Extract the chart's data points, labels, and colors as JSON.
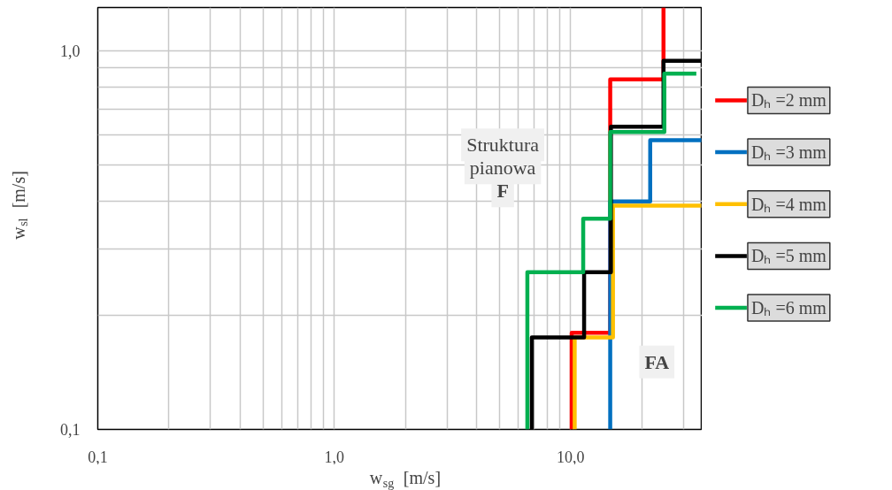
{
  "chart_data": {
    "type": "line",
    "xlabel": "w$_{sg}$ [m/s]",
    "ylabel": "w$_{sl}$ [m/s]",
    "annotations": [
      "Struktura\npianowa\nF",
      "FA"
    ],
    "log": "xy",
    "grid": true,
    "legend": "right",
    "line_style": "solid",
    "marker": "none",
    "xlim": [
      0.1,
      36
    ],
    "ylim": [
      0.1,
      1.3
    ],
    "xticks": [
      {
        "value": 0.1,
        "label": "0,1"
      },
      {
        "value": 0.2,
        "label": null
      },
      {
        "value": 0.3,
        "label": null
      },
      {
        "value": 0.4,
        "label": null
      },
      {
        "value": 0.5,
        "label": null
      },
      {
        "value": 0.6,
        "label": null
      },
      {
        "value": 0.7,
        "label": null
      },
      {
        "value": 0.8,
        "label": null
      },
      {
        "value": 0.9,
        "label": null
      },
      {
        "value": 1,
        "label": "1,0"
      },
      {
        "value": 2,
        "label": null
      },
      {
        "value": 3,
        "label": null
      },
      {
        "value": 4,
        "label": null
      },
      {
        "value": 5,
        "label": null
      },
      {
        "value": 6,
        "label": null
      },
      {
        "value": 7,
        "label": null
      },
      {
        "value": 8,
        "label": null
      },
      {
        "value": 9,
        "label": null
      },
      {
        "value": 10,
        "label": "10,0"
      },
      {
        "value": 20,
        "label": null
      },
      {
        "value": 30,
        "label": null
      }
    ],
    "yticks": [
      {
        "value": 0.1,
        "label": "0,1"
      },
      {
        "value": 0.2,
        "label": null
      },
      {
        "value": 0.3,
        "label": null
      },
      {
        "value": 0.4,
        "label": null
      },
      {
        "value": 0.5,
        "label": null
      },
      {
        "value": 0.6,
        "label": null
      },
      {
        "value": 0.7,
        "label": null
      },
      {
        "value": 0.8,
        "label": null
      },
      {
        "value": 0.9,
        "label": null
      },
      {
        "value": 1,
        "label": "1,0"
      }
    ],
    "series": [
      {
        "name": "Dₕ =2 mm",
        "color": "#ff0000",
        "x": [
          10.1,
          10.1,
          14.7,
          14.7,
          24.7,
          24.7
        ],
        "values": [
          0.1,
          0.18,
          0.18,
          0.84,
          0.84,
          1.3
        ]
      },
      {
        "name": "Dₕ =3 mm",
        "color": "#0070c0",
        "x": [
          14.7,
          14.7,
          21.7,
          21.7,
          35.7
        ],
        "values": [
          0.1,
          0.4,
          0.4,
          0.58,
          0.58
        ]
      },
      {
        "name": "Dₕ =4 mm",
        "color": "#ffc000",
        "x": [
          10.4,
          10.4,
          15.1,
          15.1,
          35.7
        ],
        "values": [
          0.1,
          0.175,
          0.175,
          0.39,
          0.39
        ]
      },
      {
        "name": "Dₕ =5 mm",
        "color": "#000000",
        "x": [
          6.85,
          6.85,
          11.4,
          11.4,
          14.8,
          14.8,
          24.7,
          24.7,
          35.7
        ],
        "values": [
          0.1,
          0.175,
          0.175,
          0.26,
          0.26,
          0.63,
          0.63,
          0.94,
          0.94
        ]
      },
      {
        "name": "Dₕ =6 mm",
        "color": "#00b050",
        "x": [
          6.56,
          6.56,
          11.3,
          11.3,
          14.7,
          14.7,
          24.9,
          24.9,
          34
        ],
        "values": [
          0.1,
          0.26,
          0.26,
          0.36,
          0.36,
          0.61,
          0.61,
          0.87,
          0.87
        ]
      }
    ]
  }
}
